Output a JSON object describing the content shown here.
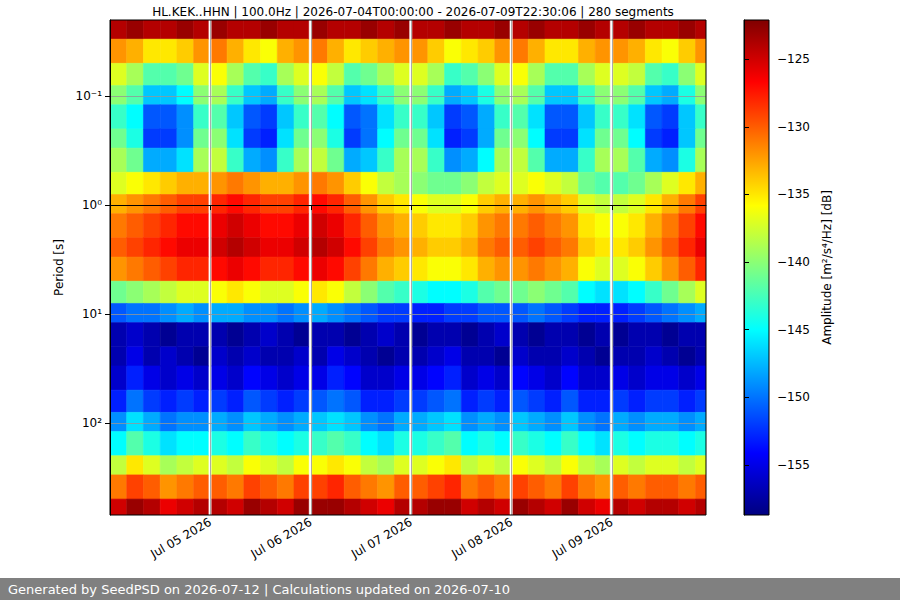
{
  "chart_data": {
    "type": "heatmap",
    "title": "HL.KEK..HHN | 100.0Hz | 2026-07-04T00:00:00 - 2026-07-09T22:30:06 | 280 segments",
    "y_label": "Period [s]",
    "colorbar_label": "Amplitude [m²/s⁴/Hz] [dB]",
    "annotations": [
      "Generated by SeedPSD on 2026-07-12 | Calculations updated on 2026-07-10"
    ],
    "log": "y",
    "grid": true,
    "x": [
      "2026-07-04T00:00:00",
      "2026-07-04T04:00:00",
      "2026-07-04T08:00:00",
      "2026-07-04T12:00:00",
      "2026-07-04T16:00:00",
      "2026-07-04T20:00:00",
      "2026-07-04T23:30:00",
      "2026-07-05T00:20:00",
      "2026-07-05T04:00:00",
      "2026-07-05T08:00:00",
      "2026-07-05T12:00:00",
      "2026-07-05T16:00:00",
      "2026-07-05T20:00:00",
      "2026-07-05T23:30:00",
      "2026-07-06T00:20:00",
      "2026-07-06T04:00:00",
      "2026-07-06T08:00:00",
      "2026-07-06T12:00:00",
      "2026-07-06T16:00:00",
      "2026-07-06T20:00:00",
      "2026-07-06T23:30:00",
      "2026-07-07T00:20:00",
      "2026-07-07T04:00:00",
      "2026-07-07T08:00:00",
      "2026-07-07T12:00:00",
      "2026-07-07T16:00:00",
      "2026-07-07T20:00:00",
      "2026-07-07T23:30:00",
      "2026-07-08T00:20:00",
      "2026-07-08T04:00:00",
      "2026-07-08T08:00:00",
      "2026-07-08T12:00:00",
      "2026-07-08T16:00:00",
      "2026-07-08T20:00:00",
      "2026-07-08T23:30:00",
      "2026-07-09T00:20:00",
      "2026-07-09T04:00:00",
      "2026-07-09T08:00:00",
      "2026-07-09T12:00:00",
      "2026-07-09T16:00:00",
      "2026-07-09T20:00:00"
    ],
    "xlim": [
      "2026-07-04T00:00:00",
      "2026-07-09T22:30:06"
    ],
    "xticks": [
      {
        "value": "2026-07-05T00:00:00",
        "label": "Jul 05 2026"
      },
      {
        "value": "2026-07-06T00:00:00",
        "label": "Jul 06 2026"
      },
      {
        "value": "2026-07-07T00:00:00",
        "label": "Jul 07 2026"
      },
      {
        "value": "2026-07-08T00:00:00",
        "label": "Jul 08 2026"
      },
      {
        "value": "2026-07-09T00:00:00",
        "label": "Jul 09 2026"
      }
    ],
    "y_edges": [
      0.02,
      0.03,
      0.05,
      0.08,
      0.12,
      0.2,
      0.3,
      0.5,
      0.8,
      1.2,
      2,
      3,
      5,
      8,
      12,
      20,
      30,
      50,
      80,
      120,
      200,
      300,
      500,
      700
    ],
    "ylim": [
      0.02,
      700
    ],
    "yticks": [
      {
        "value": 0.1,
        "label": "10⁻¹"
      },
      {
        "value": 1,
        "label": "10⁰"
      },
      {
        "value": 10,
        "label": "10¹"
      },
      {
        "value": 100,
        "label": "10²"
      }
    ],
    "cells": [
      [
        -124,
        -123,
        -124,
        -124,
        -123,
        -124,
        null,
        -123,
        -124,
        -124,
        -123,
        -124,
        -124,
        null,
        -123,
        -124,
        -124,
        -123,
        -124,
        -123,
        null,
        -124,
        -124,
        -123,
        -124,
        -124,
        -123,
        null,
        -124,
        -123,
        -124,
        -124,
        -123,
        -124,
        null,
        -124,
        -123,
        -124,
        -124,
        -123,
        -124
      ],
      [
        -132,
        -133,
        -135,
        -135,
        -134,
        -132,
        null,
        -131,
        -133,
        -135,
        -136,
        -133,
        -132,
        null,
        -131,
        -133,
        -135,
        -134,
        -133,
        -132,
        null,
        -132,
        -134,
        -136,
        -135,
        -134,
        -132,
        null,
        -131,
        -133,
        -135,
        -135,
        -133,
        -132,
        null,
        -132,
        -133,
        -135,
        -136,
        -134,
        -132
      ],
      [
        -137,
        -139,
        -142,
        -142,
        -141,
        -137,
        null,
        -136,
        -139,
        -142,
        -143,
        -139,
        -137,
        null,
        -136,
        -138,
        -142,
        -141,
        -139,
        -137,
        null,
        -137,
        -139,
        -143,
        -142,
        -140,
        -137,
        null,
        -136,
        -139,
        -142,
        -142,
        -139,
        -137,
        null,
        -137,
        -138,
        -142,
        -143,
        -140,
        -137
      ],
      [
        -140,
        -142,
        -147,
        -147,
        -145,
        -140,
        null,
        -139,
        -143,
        -147,
        -148,
        -143,
        -140,
        null,
        -139,
        -142,
        -147,
        -146,
        -143,
        -140,
        null,
        -140,
        -143,
        -148,
        -147,
        -144,
        -140,
        null,
        -139,
        -142,
        -147,
        -147,
        -143,
        -140,
        null,
        -140,
        -142,
        -147,
        -148,
        -144,
        -140
      ],
      [
        -143,
        -145,
        -151,
        -151,
        -149,
        -143,
        null,
        -142,
        -147,
        -151,
        -152,
        -147,
        -143,
        null,
        -142,
        -145,
        -151,
        -150,
        -146,
        -143,
        null,
        -143,
        -147,
        -152,
        -151,
        -148,
        -143,
        null,
        -142,
        -146,
        -151,
        -151,
        -147,
        -143,
        null,
        -143,
        -146,
        -151,
        -152,
        -147,
        -143
      ],
      [
        -141,
        -144,
        -152,
        -152,
        -149,
        -141,
        null,
        -140,
        -146,
        -152,
        -153,
        -146,
        -141,
        null,
        -140,
        -144,
        -152,
        -150,
        -145,
        -141,
        null,
        -141,
        -146,
        -153,
        -152,
        -148,
        -141,
        null,
        -140,
        -145,
        -152,
        -152,
        -146,
        -141,
        null,
        -141,
        -145,
        -152,
        -153,
        -147,
        -141
      ],
      [
        -139,
        -141,
        -148,
        -148,
        -146,
        -139,
        null,
        -138,
        -143,
        -148,
        -149,
        -143,
        -139,
        null,
        -138,
        -141,
        -148,
        -147,
        -143,
        -139,
        null,
        -139,
        -143,
        -149,
        -148,
        -145,
        -139,
        null,
        -138,
        -142,
        -148,
        -148,
        -143,
        -139,
        null,
        -139,
        -142,
        -148,
        -149,
        -144,
        -139
      ],
      [
        -137,
        -136,
        -135,
        -134,
        -133,
        -133,
        null,
        -132,
        -131,
        -132,
        -133,
        -133,
        -132,
        null,
        -131,
        -132,
        -134,
        -136,
        -138,
        -139,
        null,
        -140,
        -141,
        -141,
        -140,
        -138,
        -137,
        null,
        -137,
        -136,
        -137,
        -138,
        -141,
        -142,
        null,
        -142,
        -141,
        -139,
        -137,
        -135,
        -133
      ],
      [
        -133,
        -132,
        -131,
        -130,
        -129,
        -129,
        null,
        -128,
        -127,
        -128,
        -129,
        -129,
        -128,
        null,
        -127,
        -128,
        -130,
        -132,
        -134,
        -135,
        null,
        -136,
        -137,
        -137,
        -136,
        -134,
        -133,
        null,
        -133,
        -132,
        -133,
        -134,
        -137,
        -138,
        null,
        -138,
        -137,
        -135,
        -133,
        -131,
        -129
      ],
      [
        -131,
        -130,
        -129,
        -128,
        -127,
        -127,
        null,
        -126,
        -125,
        -126,
        -127,
        -127,
        -126,
        null,
        -125,
        -126,
        -128,
        -130,
        -132,
        -133,
        null,
        -134,
        -135,
        -135,
        -134,
        -132,
        -131,
        null,
        -131,
        -130,
        -131,
        -132,
        -135,
        -136,
        null,
        -136,
        -135,
        -133,
        -131,
        -129,
        -127
      ],
      [
        -130,
        -129,
        -128,
        -127,
        -126,
        -126,
        null,
        -125,
        -124,
        -125,
        -126,
        -126,
        -125,
        null,
        -124,
        -125,
        -127,
        -129,
        -131,
        -132,
        null,
        -133,
        -134,
        -134,
        -133,
        -131,
        -130,
        null,
        -130,
        -129,
        -130,
        -131,
        -134,
        -135,
        null,
        -135,
        -134,
        -132,
        -130,
        -128,
        -126
      ],
      [
        -132,
        -131,
        -130,
        -129,
        -128,
        -128,
        null,
        -127,
        -126,
        -127,
        -128,
        -128,
        -127,
        null,
        -126,
        -127,
        -129,
        -131,
        -133,
        -134,
        null,
        -135,
        -136,
        -136,
        -135,
        -133,
        -132,
        null,
        -132,
        -131,
        -132,
        -133,
        -136,
        -137,
        null,
        -137,
        -136,
        -134,
        -132,
        -130,
        -128
      ],
      [
        -141,
        -140,
        -139,
        -138,
        -137,
        -137,
        null,
        -136,
        -135,
        -136,
        -137,
        -137,
        -136,
        null,
        -135,
        -136,
        -138,
        -140,
        -142,
        -143,
        null,
        -144,
        -145,
        -145,
        -144,
        -142,
        -141,
        null,
        -141,
        -140,
        -141,
        -142,
        -145,
        -146,
        null,
        -146,
        -145,
        -143,
        -141,
        -139,
        -137
      ],
      [
        -151,
        -150,
        -150,
        -149,
        -148,
        -149,
        null,
        -148,
        -148,
        -149,
        -149,
        -150,
        -149,
        null,
        -148,
        -149,
        -150,
        -151,
        -152,
        -152,
        null,
        -153,
        -153,
        -152,
        -152,
        -151,
        -151,
        null,
        -151,
        -150,
        -151,
        -152,
        -153,
        -153,
        null,
        -153,
        -152,
        -151,
        -150,
        -149,
        -148
      ],
      [
        -157,
        -156,
        -157,
        -158,
        -157,
        -157,
        null,
        -157,
        -158,
        -157,
        -156,
        -157,
        -158,
        null,
        -157,
        -157,
        -158,
        -157,
        -156,
        -157,
        null,
        -158,
        -157,
        -157,
        -158,
        -157,
        -156,
        null,
        -157,
        -158,
        -157,
        -157,
        -158,
        -157,
        null,
        -158,
        -157,
        -157,
        -158,
        -157,
        -157
      ],
      [
        -157,
        -155,
        -157,
        -156,
        -157,
        -158,
        null,
        -156,
        -157,
        -156,
        -157,
        -157,
        -156,
        null,
        -157,
        -155,
        -156,
        -157,
        -158,
        -157,
        null,
        -157,
        -156,
        -155,
        -157,
        -157,
        -158,
        null,
        -156,
        -157,
        -157,
        -156,
        -157,
        -158,
        null,
        -157,
        -157,
        -156,
        -157,
        -158,
        -157
      ],
      [
        -156,
        -153,
        -155,
        -156,
        -155,
        -156,
        null,
        -155,
        -156,
        -154,
        -155,
        -156,
        -155,
        null,
        -155,
        -153,
        -154,
        -156,
        -156,
        -155,
        null,
        -155,
        -154,
        -153,
        -156,
        -155,
        -156,
        null,
        -154,
        -155,
        -156,
        -154,
        -156,
        -156,
        null,
        -155,
        -156,
        -155,
        -155,
        -156,
        -155
      ],
      [
        -153,
        -150,
        -152,
        -153,
        -152,
        -153,
        null,
        -152,
        -153,
        -151,
        -152,
        -153,
        -152,
        null,
        -151,
        -150,
        -151,
        -153,
        -153,
        -152,
        null,
        -152,
        -151,
        -150,
        -153,
        -152,
        -153,
        null,
        -151,
        -152,
        -153,
        -151,
        -153,
        -153,
        null,
        -152,
        -153,
        -152,
        -152,
        -153,
        -152
      ],
      [
        -149,
        -146,
        -148,
        -150,
        -149,
        -149,
        null,
        -148,
        -149,
        -147,
        -148,
        -149,
        -148,
        null,
        -147,
        -146,
        -147,
        -149,
        -150,
        -148,
        null,
        -148,
        -147,
        -146,
        -149,
        -148,
        -149,
        null,
        -147,
        -148,
        -149,
        -147,
        -149,
        -150,
        null,
        -148,
        -149,
        -148,
        -148,
        -149,
        -148
      ],
      [
        -145,
        -142,
        -144,
        -146,
        -145,
        -145,
        null,
        -144,
        -145,
        -143,
        -144,
        -145,
        -144,
        null,
        -143,
        -142,
        -143,
        -145,
        -146,
        -144,
        null,
        -144,
        -143,
        -142,
        -145,
        -144,
        -145,
        null,
        -143,
        -144,
        -145,
        -143,
        -145,
        -146,
        null,
        -144,
        -145,
        -144,
        -144,
        -145,
        -144
      ],
      [
        -138,
        -135,
        -137,
        -139,
        -138,
        -137,
        null,
        -137,
        -138,
        -136,
        -137,
        -138,
        -136,
        null,
        -136,
        -135,
        -136,
        -138,
        -139,
        -137,
        null,
        -137,
        -136,
        -135,
        -138,
        -137,
        -138,
        null,
        -136,
        -137,
        -138,
        -136,
        -138,
        -139,
        null,
        -137,
        -138,
        -137,
        -137,
        -138,
        -137
      ],
      [
        -131,
        -129,
        -130,
        -132,
        -131,
        -130,
        null,
        -130,
        -131,
        -129,
        -130,
        -131,
        -129,
        null,
        -129,
        -128,
        -130,
        -131,
        -132,
        -130,
        null,
        -130,
        -129,
        -128,
        -131,
        -130,
        -131,
        null,
        -129,
        -130,
        -131,
        -129,
        -131,
        -132,
        null,
        -130,
        -131,
        -130,
        -130,
        -131,
        -130
      ],
      [
        -125,
        -123,
        -124,
        -126,
        -125,
        -124,
        null,
        -124,
        -125,
        -123,
        -124,
        -125,
        -123,
        null,
        -123,
        -123,
        -124,
        -125,
        -126,
        -124,
        null,
        -124,
        -123,
        -123,
        -125,
        -124,
        -125,
        null,
        -123,
        -124,
        -125,
        -123,
        -125,
        -126,
        null,
        -124,
        -125,
        -124,
        -124,
        -125,
        -124
      ]
    ],
    "colorbar_lim": [
      -158.7,
      -122.1
    ],
    "colorbar_ticks": [
      {
        "value": -155,
        "label": "−155"
      },
      {
        "value": -150,
        "label": "−150"
      },
      {
        "value": -145,
        "label": "−145"
      },
      {
        "value": -140,
        "label": "−140"
      },
      {
        "value": -135,
        "label": "−135"
      },
      {
        "value": -130,
        "label": "−130"
      },
      {
        "value": -125,
        "label": "−125"
      }
    ]
  }
}
